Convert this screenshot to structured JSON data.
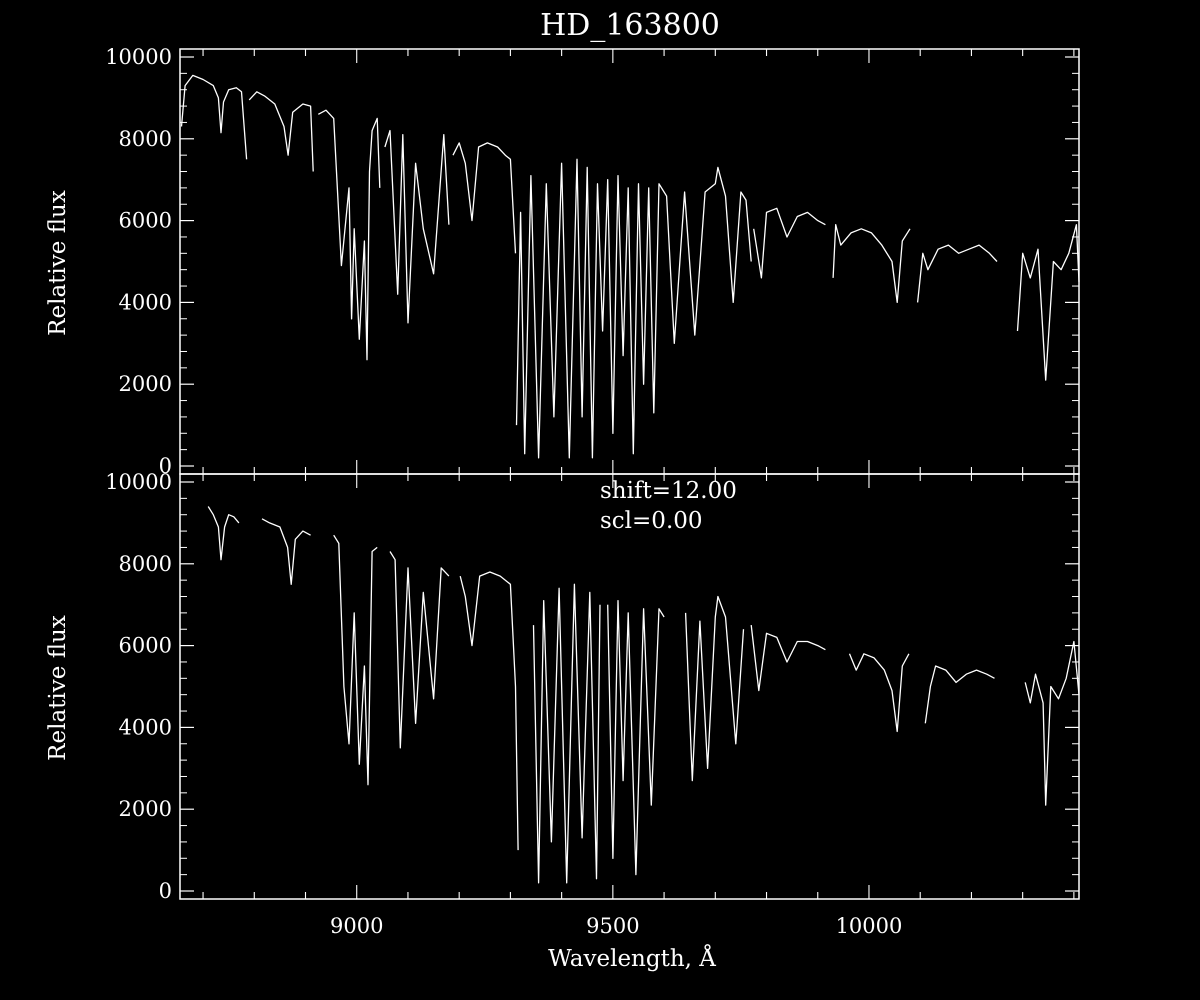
{
  "chart_data": [
    {
      "type": "line",
      "title": "HD_163800",
      "xlabel": "",
      "ylabel": "Relative flux",
      "xlim": [
        8655,
        10410
      ],
      "ylim": [
        0,
        10000
      ],
      "xticks": [],
      "yticks": [
        0,
        2000,
        4000,
        6000,
        8000,
        10000
      ],
      "ytick_labels": [
        "0",
        "2000",
        "4000",
        "6000",
        "8000",
        "10000"
      ],
      "grid": false,
      "annotations": [],
      "line_color": "#ffffff",
      "series": [
        {
          "name": "",
          "segments": [
            {
              "x": [
                8658,
                8665,
                8680,
                8700,
                8720,
                8730,
                8735,
                8740,
                8750,
                8765,
                8775,
                8785
              ],
              "y": [
                8300,
                9300,
                9550,
                9450,
                9300,
                9000,
                8150,
                8900,
                9200,
                9250,
                9150,
                7500
              ]
            },
            {
              "x": [
                8790,
                8805,
                8820,
                8840,
                8858,
                8866,
                8875,
                8895,
                8910,
                8915
              ],
              "y": [
                8950,
                9150,
                9050,
                8850,
                8300,
                7600,
                8650,
                8850,
                8800,
                7200
              ]
            },
            {
              "x": [
                8925,
                8940,
                8955,
                8970,
                8985,
                8990,
                8995,
                9005,
                9015,
                9020,
                9025,
                9030,
                9040,
                9045
              ],
              "y": [
                8600,
                8700,
                8500,
                4900,
                6800,
                3600,
                5800,
                3100,
                5500,
                2600,
                7200,
                8200,
                8500,
                6800
              ]
            },
            {
              "x": [
                9055,
                9065,
                9080,
                9090,
                9100,
                9115,
                9130,
                9150,
                9170,
                9180
              ],
              "y": [
                7800,
                8200,
                4200,
                8100,
                3500,
                7400,
                5800,
                4700,
                8100,
                5900
              ]
            },
            {
              "x": [
                9188,
                9200,
                9212,
                9225,
                9238,
                9255,
                9275,
                9290,
                9300,
                9310
              ],
              "y": [
                7600,
                7900,
                7400,
                6000,
                7800,
                7900,
                7800,
                7600,
                7500,
                5200
              ]
            },
            {
              "x": [
                9312,
                9320,
                9328,
                9340,
                9355,
                9370,
                9385,
                9400,
                9415,
                9430,
                9440,
                9450,
                9460,
                9470,
                9480,
                9490,
                9500,
                9510,
                9520,
                9530,
                9540,
                9550,
                9560,
                9570,
                9580,
                9590,
                9605,
                9620,
                9640,
                9660,
                9680,
                9700,
                9705,
                9720,
                9735,
                9750,
                9760,
                9770
              ],
              "y": [
                1000,
                6200,
                300,
                7100,
                200,
                6900,
                1200,
                7400,
                200,
                7500,
                1200,
                7300,
                200,
                6900,
                3300,
                7000,
                800,
                7100,
                2700,
                6800,
                300,
                6900,
                2000,
                6800,
                1300,
                6900,
                6600,
                3000,
                6700,
                3200,
                6700,
                6900,
                7300,
                6600,
                4000,
                6700,
                6500,
                5000
              ]
            },
            {
              "x": [
                9775,
                9790,
                9800,
                9820,
                9840,
                9860,
                9880,
                9900,
                9915
              ],
              "y": [
                5800,
                4600,
                6200,
                6300,
                5600,
                6100,
                6200,
                6000,
                5900
              ]
            },
            {
              "x": [
                9930,
                9935,
                9945,
                9965,
                9985,
                10005,
                10025,
                10045,
                10055,
                10065,
                10080
              ],
              "y": [
                4600,
                5900,
                5400,
                5700,
                5800,
                5700,
                5400,
                5000,
                4000,
                5500,
                5800
              ]
            },
            {
              "x": [
                10095,
                10105,
                10115,
                10135,
                10155,
                10175,
                10195,
                10215,
                10235,
                10250
              ],
              "y": [
                4000,
                5200,
                4800,
                5300,
                5400,
                5200,
                5300,
                5400,
                5200,
                5000
              ]
            },
            {
              "x": [
                10290,
                10300,
                10315,
                10330,
                10345,
                10360,
                10375,
                10390,
                10405,
                10410
              ],
              "y": [
                3300,
                5200,
                4600,
                5300,
                2100,
                5000,
                4800,
                5200,
                5900,
                4500
              ]
            }
          ]
        }
      ]
    },
    {
      "type": "line",
      "title": "",
      "xlabel": "Wavelength, Å",
      "ylabel": "Relative flux",
      "xlim": [
        8655,
        10410
      ],
      "ylim": [
        0,
        10000
      ],
      "xticks": [
        9000,
        9500,
        10000
      ],
      "xtick_labels": [
        "9000",
        "9500",
        "10000"
      ],
      "yticks": [
        0,
        2000,
        4000,
        6000,
        8000,
        10000
      ],
      "ytick_labels": [
        "0",
        "2000",
        "4000",
        "6000",
        "8000",
        "10000"
      ],
      "grid": false,
      "annotations": [
        "shift=12.00",
        "scl=0.00"
      ],
      "line_color": "#ffffff",
      "series": [
        {
          "name": "",
          "segments": [
            {
              "x": [
                8710,
                8720,
                8730,
                8735,
                8742,
                8750,
                8760,
                8770
              ],
              "y": [
                9400,
                9200,
                8900,
                8100,
                8900,
                9200,
                9150,
                9000
              ]
            },
            {
              "x": [
                8815,
                8830,
                8850,
                8865,
                8872,
                8880,
                8895,
                8910
              ],
              "y": [
                9100,
                9000,
                8900,
                8400,
                7500,
                8600,
                8800,
                8700
              ]
            },
            {
              "x": [
                8955,
                8965,
                8975,
                8985,
                8995,
                9005,
                9015,
                9022,
                9030,
                9040
              ],
              "y": [
                8700,
                8500,
                5000,
                3600,
                6800,
                3100,
                5500,
                2600,
                8300,
                8400
              ]
            },
            {
              "x": [
                9065,
                9075,
                9085,
                9100,
                9115,
                9130,
                9150,
                9165,
                9180
              ],
              "y": [
                8300,
                8100,
                3500,
                7900,
                4100,
                7300,
                4700,
                7900,
                7700
              ]
            },
            {
              "x": [
                9202,
                9212,
                9225,
                9240,
                9260,
                9280,
                9300,
                9310,
                9315
              ],
              "y": [
                7700,
                7200,
                6000,
                7700,
                7800,
                7700,
                7500,
                5000,
                1000
              ]
            },
            {
              "x": [
                9345,
                9355,
                9365,
                9380,
                9395,
                9410,
                9425,
                9440,
                9455,
                9468,
                9475
              ],
              "y": [
                6500,
                200,
                7100,
                1200,
                7400,
                200,
                7500,
                1300,
                7300,
                300,
                7000
              ]
            },
            {
              "x": [
                9490,
                9500,
                9510,
                9520,
                9530,
                9545,
                9560,
                9575,
                9590,
                9600
              ],
              "y": [
                7000,
                800,
                7100,
                2700,
                6800,
                400,
                6900,
                2100,
                6900,
                6700
              ]
            },
            {
              "x": [
                9642,
                9655,
                9670,
                9685,
                9700,
                9705,
                9720,
                9740,
                9755
              ],
              "y": [
                6800,
                2700,
                6600,
                3000,
                6700,
                7200,
                6700,
                3600,
                6400
              ]
            },
            {
              "x": [
                9770,
                9785,
                9800,
                9820,
                9840,
                9860,
                9880,
                9900,
                9915
              ],
              "y": [
                6500,
                4900,
                6300,
                6200,
                5600,
                6100,
                6100,
                6000,
                5900
              ]
            },
            {
              "x": [
                9962,
                9975,
                9990,
                10010,
                10030,
                10045,
                10055,
                10065,
                10078
              ],
              "y": [
                5800,
                5400,
                5800,
                5700,
                5400,
                4900,
                3900,
                5500,
                5800
              ]
            },
            {
              "x": [
                10110,
                10120,
                10130,
                10150,
                10170,
                10190,
                10210,
                10230,
                10245
              ],
              "y": [
                4100,
                5000,
                5500,
                5400,
                5100,
                5300,
                5400,
                5300,
                5200
              ]
            },
            {
              "x": [
                10305,
                10315,
                10325,
                10340,
                10345,
                10355,
                10370,
                10385,
                10400,
                10410
              ],
              "y": [
                5100,
                4600,
                5300,
                4600,
                2100,
                5000,
                4700,
                5200,
                6100,
                4800
              ]
            }
          ]
        }
      ]
    }
  ]
}
